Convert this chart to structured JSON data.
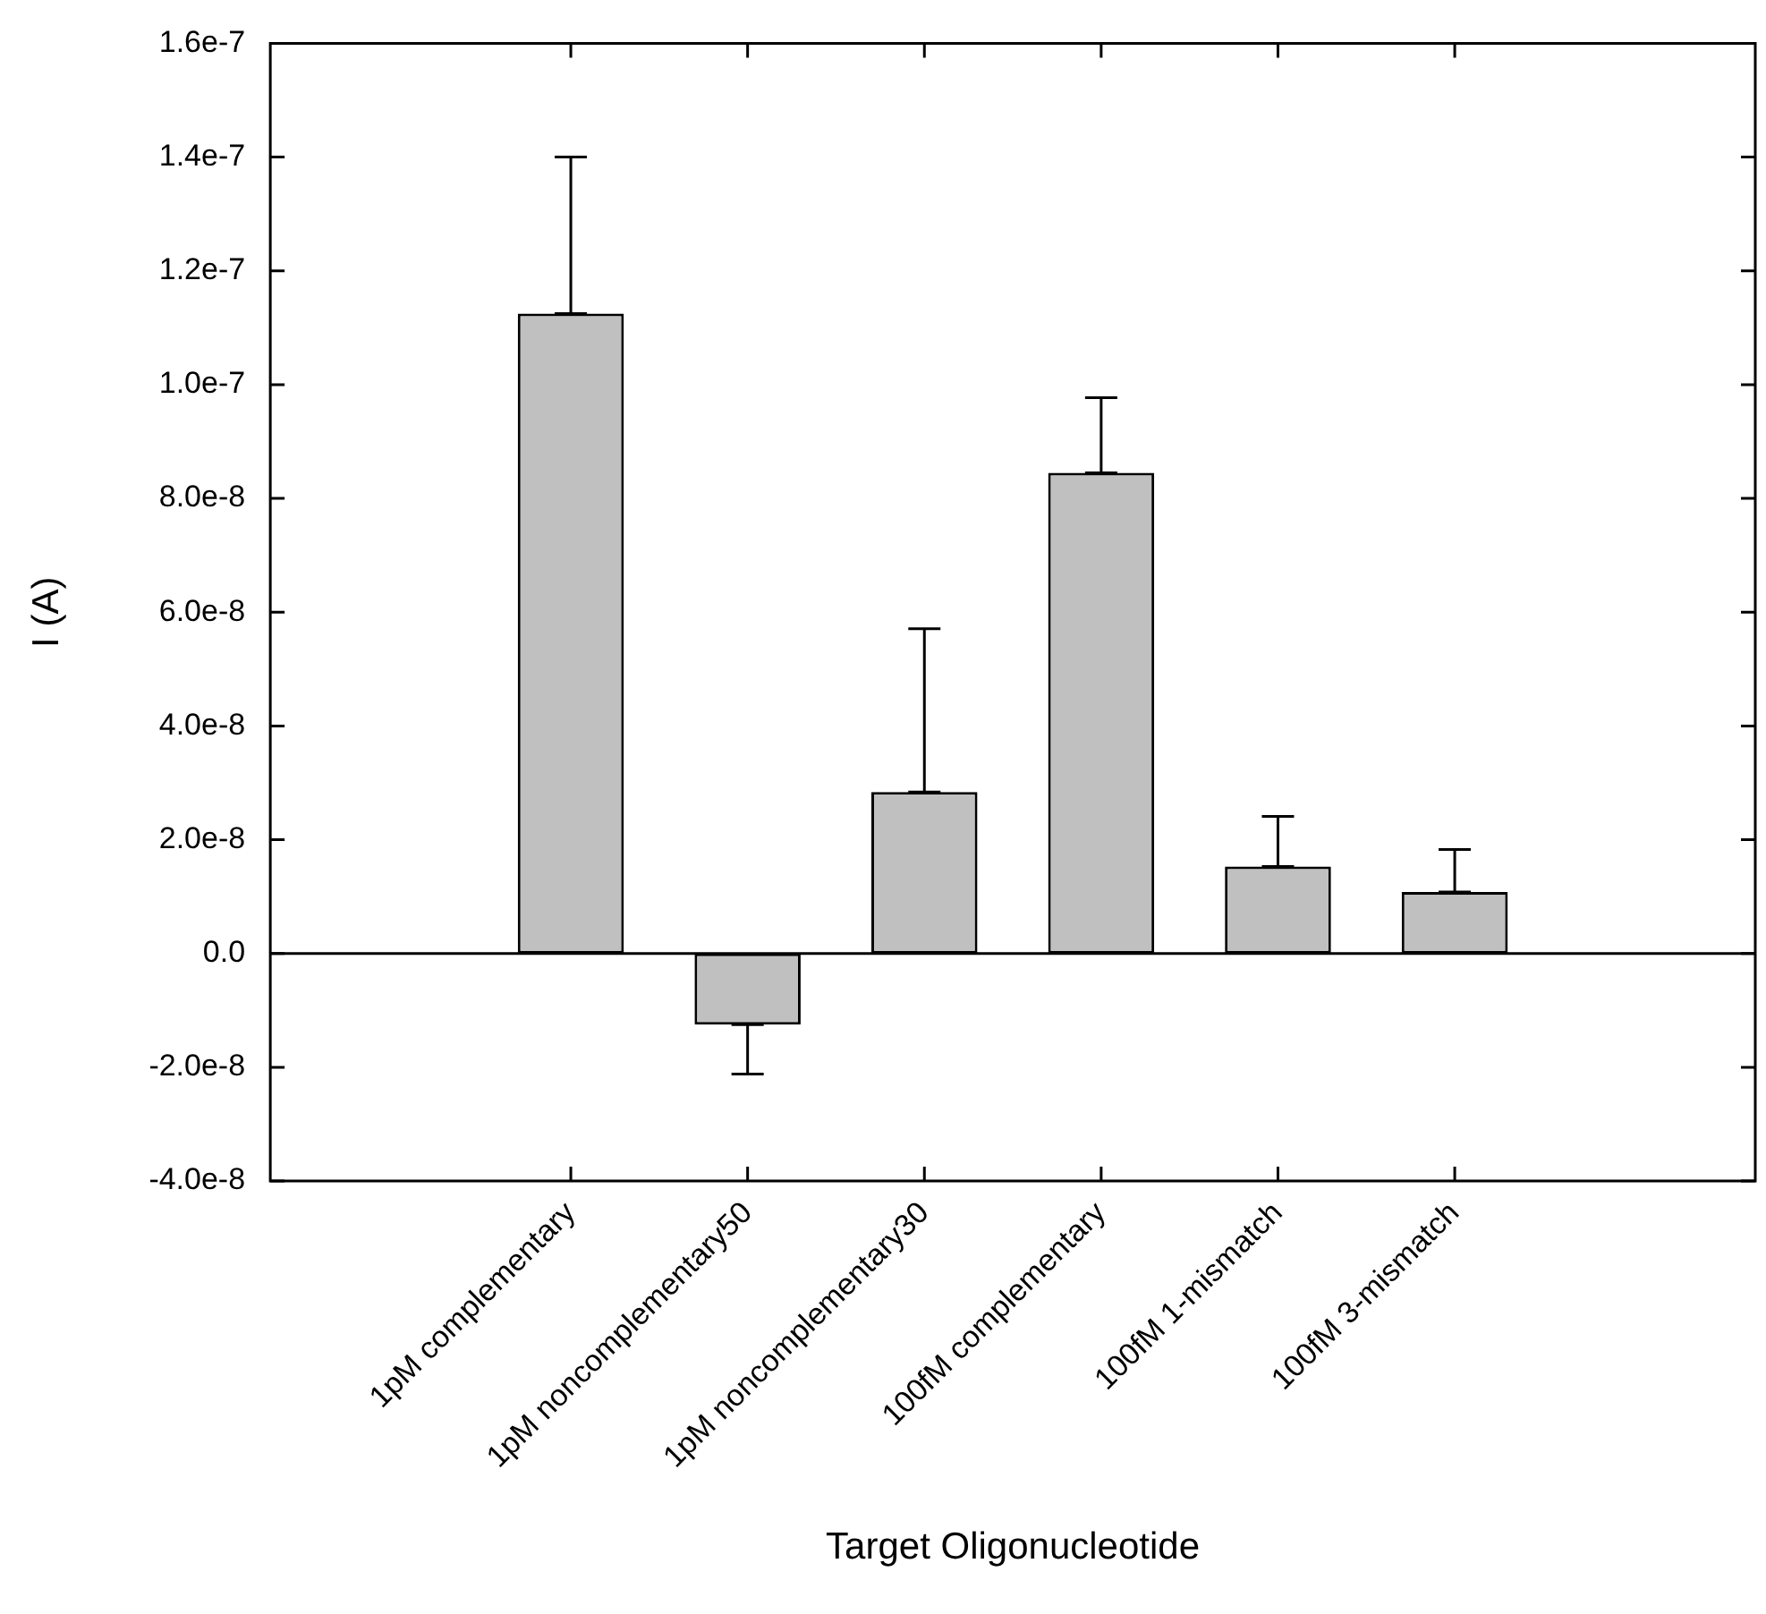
{
  "chart_data": {
    "type": "bar",
    "categories": [
      "1pM complementary",
      "1pM noncomplementary50",
      "1pM noncomplementary30",
      "100fM complementary",
      "100fM 1-mismatch",
      "100fM 3-mismatch"
    ],
    "values": [
      1.125e-07,
      -1.25e-08,
      2.84e-08,
      8.45e-08,
      1.53e-08,
      1.08e-08
    ],
    "errors": [
      [
        1.125e-07,
        1.4e-07
      ],
      [
        -2.12e-08,
        -1.25e-08
      ],
      [
        2.84e-08,
        5.71e-08
      ],
      [
        8.45e-08,
        9.77e-08
      ],
      [
        1.53e-08,
        2.41e-08
      ],
      [
        1.08e-08,
        1.83e-08
      ]
    ],
    "color": "#c0c0c0",
    "xlabel": "Target Oligonucleotide",
    "ylabel": "I (A)",
    "ylim": [
      -4e-08,
      1.6e-07
    ],
    "yticks": [
      {
        "value": -4e-08,
        "label": "-4.0e-8"
      },
      {
        "value": -2e-08,
        "label": "-2.0e-8"
      },
      {
        "value": 0,
        "label": "0.0"
      },
      {
        "value": 2e-08,
        "label": "2.0e-8"
      },
      {
        "value": 4e-08,
        "label": "4.0e-8"
      },
      {
        "value": 6e-08,
        "label": "6.0e-8"
      },
      {
        "value": 8e-08,
        "label": "8.0e-8"
      },
      {
        "value": 1e-07,
        "label": "1.0e-7"
      },
      {
        "value": 1.2e-07,
        "label": "1.2e-7"
      },
      {
        "value": 1.4e-07,
        "label": "1.4e-7"
      },
      {
        "value": 1.6e-07,
        "label": "1.6e-7"
      }
    ],
    "ref_lines": [
      {
        "axis": "y",
        "value": 0,
        "color": "#000000"
      }
    ],
    "grid": false,
    "legend": false
  }
}
